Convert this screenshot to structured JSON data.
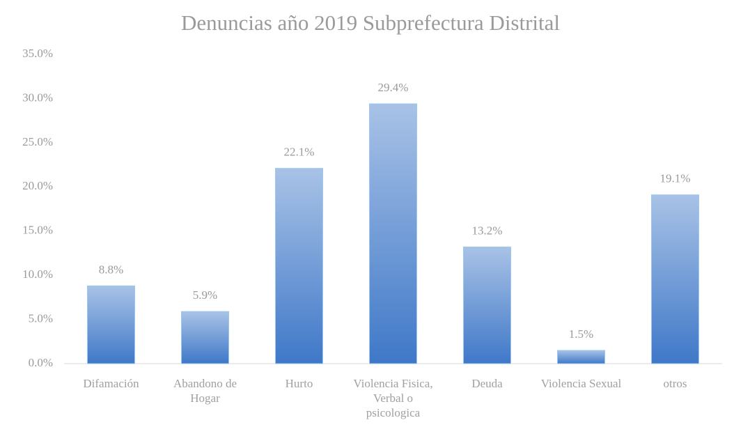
{
  "chart_data": {
    "type": "bar",
    "title": "Denuncias año 2019 Subprefectura Distrital",
    "categories": [
      "Difamación",
      "Abandono de Hogar",
      "Hurto",
      "Violencia Fisica, Verbal o psicologica",
      "Deuda",
      "Violencia Sexual",
      "otros"
    ],
    "values": [
      8.8,
      5.9,
      22.1,
      29.4,
      13.2,
      1.5,
      19.1
    ],
    "value_labels": [
      "8.8%",
      "5.9%",
      "22.1%",
      "29.4%",
      "13.2%",
      "1.5%",
      "19.1%"
    ],
    "color": "#3f78c8",
    "ylim": [
      0,
      35
    ],
    "yticks": [
      {
        "value": 0,
        "label": "0.0%"
      },
      {
        "value": 5,
        "label": "5.0%"
      },
      {
        "value": 10,
        "label": "10.0%"
      },
      {
        "value": 15,
        "label": "15.0%"
      },
      {
        "value": 20,
        "label": "20.0%"
      },
      {
        "value": 25,
        "label": "25.0%"
      },
      {
        "value": 30,
        "label": "30.0%"
      },
      {
        "value": 35,
        "label": "35.0%"
      }
    ],
    "grid": false
  }
}
